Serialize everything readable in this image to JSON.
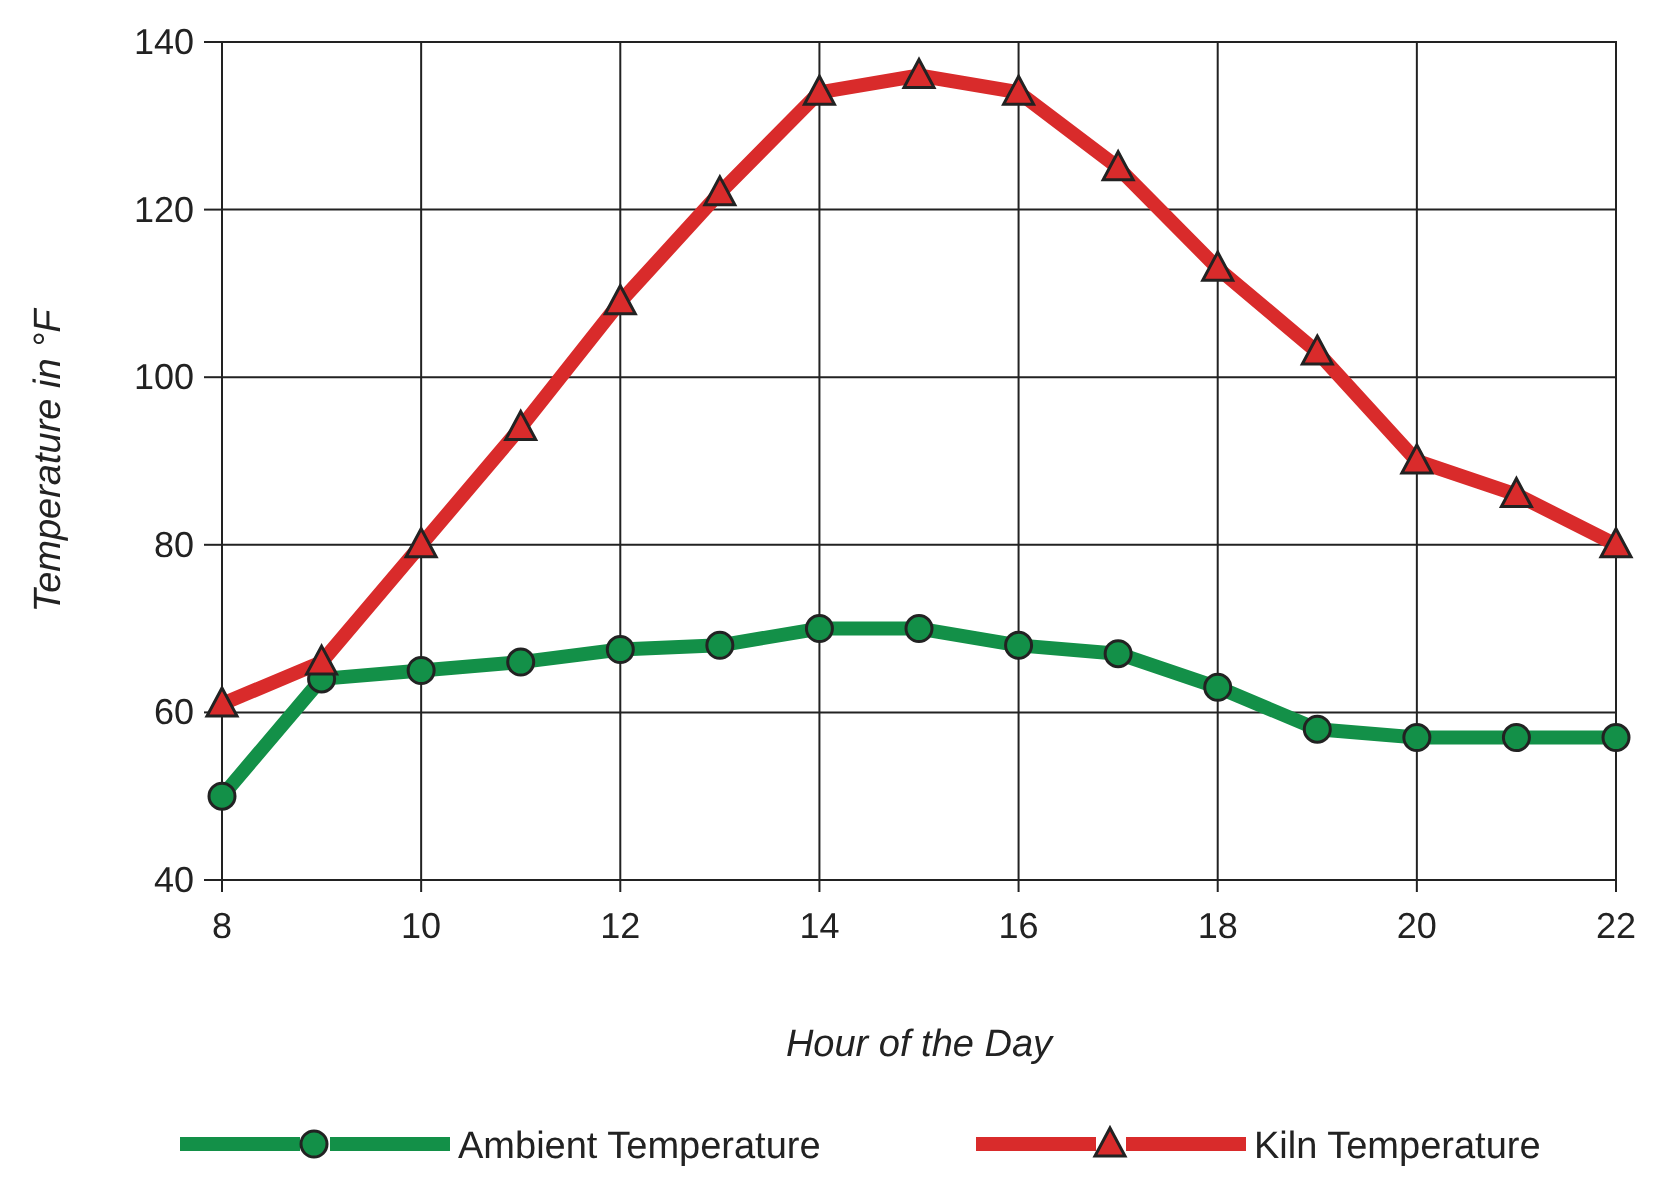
{
  "chart_data": {
    "type": "line",
    "xlabel": "Hour of the Day",
    "ylabel": "Temperature in °F",
    "x": [
      8,
      9,
      10,
      11,
      12,
      13,
      14,
      15,
      16,
      17,
      18,
      19,
      20,
      21,
      22
    ],
    "xlim": [
      8,
      22
    ],
    "xticks": [
      8,
      10,
      12,
      14,
      16,
      18,
      20,
      22
    ],
    "ylim": [
      40,
      140
    ],
    "yticks": [
      40,
      60,
      80,
      100,
      120,
      140
    ],
    "grid": true,
    "legend": "bottom",
    "line_style": "solid",
    "series": [
      {
        "name": "Ambient Temperature",
        "color": "#139048",
        "marker": "circle",
        "values": [
          50,
          64,
          65,
          66,
          67.5,
          68,
          70,
          70,
          68,
          67,
          63,
          58,
          57,
          57,
          57
        ]
      },
      {
        "name": "Kiln Temperature",
        "color": "#d92b2b",
        "marker": "triangle",
        "values": [
          61,
          66,
          80,
          94,
          109,
          122,
          134,
          136,
          134,
          125,
          113,
          103,
          90,
          86,
          80
        ]
      }
    ]
  }
}
